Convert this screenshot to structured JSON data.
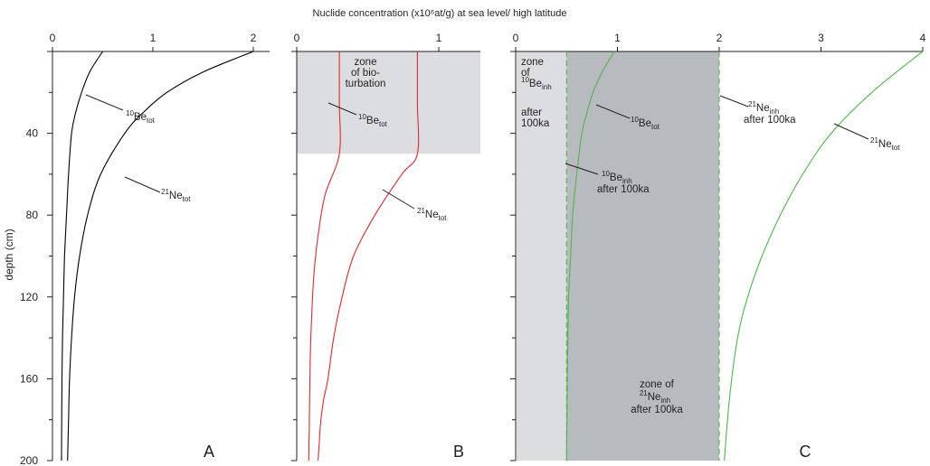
{
  "chart_data": {
    "title": "Nuclide concentration (x10⁶at/g) at sea level/ high latitude",
    "ylabel": "depth (cm)",
    "ylim": [
      0,
      200
    ],
    "yticks": [
      0,
      40,
      80,
      120,
      160,
      200
    ],
    "y_tick_labels": [
      "40",
      "80",
      "120",
      "160",
      "200"
    ],
    "panels": [
      {
        "id": "A",
        "type": "line",
        "letter": "A",
        "xlim": [
          0,
          2.1
        ],
        "xticks": [
          0,
          1,
          2
        ],
        "x_tick_labels": [
          "0",
          "1",
          "2"
        ],
        "series": [
          {
            "name": "10Be tot",
            "color": "#000000",
            "x": [
              0.5,
              0.37,
              0.29,
              0.23,
              0.19,
              0.16,
              0.14,
              0.12,
              0.11,
              0.1,
              0.095,
              0.092,
              0.09
            ],
            "y": [
              0,
              10,
              20,
              30,
              40,
              60,
              80,
              100,
              120,
              140,
              160,
              180,
              200
            ]
          },
          {
            "name": "21Ne tot",
            "color": "#000000",
            "x": [
              2.0,
              1.5,
              1.14,
              0.9,
              0.72,
              0.48,
              0.35,
              0.27,
              0.22,
              0.19,
              0.17,
              0.16,
              0.15
            ],
            "y": [
              0,
              10,
              20,
              30,
              40,
              60,
              80,
              100,
              120,
              140,
              160,
              180,
              200
            ]
          }
        ],
        "annotations": [
          {
            "id": "A_be",
            "main": "Be",
            "sup": "10",
            "sub": "tot"
          },
          {
            "id": "A_ne",
            "main": "Ne",
            "sup": "21",
            "sub": "tot"
          }
        ]
      },
      {
        "id": "B",
        "type": "line",
        "letter": "B",
        "xlim": [
          0,
          1.3
        ],
        "xticks": [
          0,
          1
        ],
        "x_tick_labels": [
          "0",
          "1"
        ],
        "bioturbation_zone": {
          "depth_range": [
            0,
            50
          ],
          "color": "#dcdde0"
        },
        "series": [
          {
            "name": "10Be tot",
            "color": "#e0292e",
            "x": [
              0.3,
              0.3,
              0.3,
              0.2,
              0.15,
              0.12,
              0.105,
              0.095,
              0.09,
              0.085
            ],
            "y": [
              0,
              25,
              50,
              70,
              90,
              110,
              130,
              150,
              175,
              200
            ]
          },
          {
            "name": "21Ne tot",
            "color": "#e0292e",
            "x": [
              0.85,
              0.85,
              0.85,
              0.74,
              0.55,
              0.4,
              0.32,
              0.26,
              0.22,
              0.19,
              0.17,
              0.16,
              0.15
            ],
            "y": [
              0,
              25,
              50,
              60,
              80,
              100,
              120,
              140,
              160,
              170,
              180,
              190,
              200
            ]
          }
        ],
        "annotations": [
          {
            "id": "B_zone",
            "lines": [
              "zone",
              "of bio-",
              "turbation"
            ]
          },
          {
            "id": "B_be",
            "main": "Be",
            "sup": "10",
            "sub": "tot"
          },
          {
            "id": "B_ne",
            "main": "Ne",
            "sup": "21",
            "sub": "tot"
          }
        ]
      },
      {
        "id": "C",
        "type": "line",
        "letter": "C",
        "xlim": [
          0,
          4
        ],
        "xticks": [
          0,
          1,
          2,
          3,
          4
        ],
        "x_tick_labels": [
          "0",
          "1",
          "2",
          "3",
          "4"
        ],
        "inherited_be_zone": {
          "x_range": [
            0,
            0.5
          ],
          "color": "#dcdde0"
        },
        "inherited_ne_zone": {
          "x_range": [
            0.5,
            2.0
          ],
          "color": "#b7babf"
        },
        "series": [
          {
            "name": "10Be tot",
            "color": "#4db848",
            "x": [
              0.97,
              0.85,
              0.76,
              0.7,
              0.65,
              0.6,
              0.56,
              0.54,
              0.52,
              0.51,
              0.505,
              0.5
            ],
            "y": [
              0,
              10,
              20,
              30,
              40,
              60,
              80,
              100,
              120,
              150,
              175,
              200
            ]
          },
          {
            "name": "21Ne tot",
            "color": "#4db848",
            "x": [
              4.0,
              3.5,
              3.1,
              2.82,
              2.6,
              2.42,
              2.28,
              2.18,
              2.1,
              2.05
            ],
            "y": [
              0,
              20,
              40,
              60,
              80,
              100,
              120,
              140,
              170,
              200
            ]
          },
          {
            "name": "10Be inh after 100ka",
            "color": "#4db848",
            "dashed": true,
            "x": [
              0.5,
              0.5
            ],
            "y": [
              0,
              200
            ]
          },
          {
            "name": "21Ne inh after 100ka",
            "color": "#4db848",
            "dashed": true,
            "x": [
              2.0,
              2.0
            ],
            "y": [
              0,
              200
            ]
          }
        ],
        "annotations": [
          {
            "id": "C_zone_be",
            "line1": "zone",
            "line2": "of",
            "main": "Be",
            "sup": "10",
            "sub": "inh",
            "line3": "after",
            "line4": "100ka"
          },
          {
            "id": "C_be_tot",
            "main": "Be",
            "sup": "10",
            "sub": "tot"
          },
          {
            "id": "C_be_inh",
            "main": "Be",
            "sup": "10",
            "sub": "inh",
            "after": "after 100ka"
          },
          {
            "id": "C_ne_inh",
            "main": "Ne",
            "sup": "21",
            "sub": "inh",
            "after": "after 100ka"
          },
          {
            "id": "C_ne_tot",
            "main": "Ne",
            "sup": "21",
            "sub": "tot"
          },
          {
            "id": "C_zone_ne",
            "line1": "zone of",
            "main": "Ne",
            "sup": "21",
            "sub": "inh",
            "after": "after 100ka"
          }
        ]
      }
    ]
  }
}
